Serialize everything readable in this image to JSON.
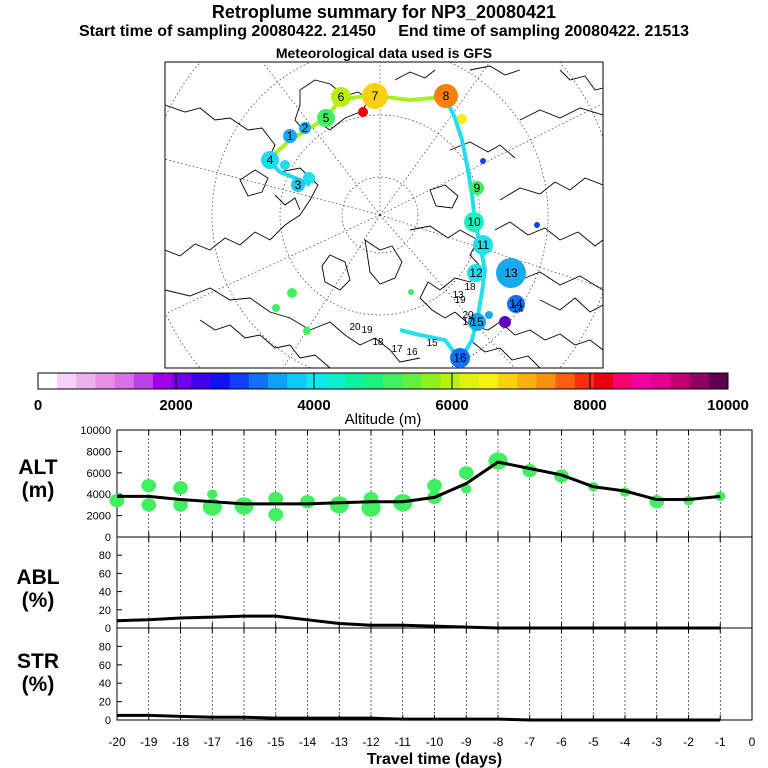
{
  "header": {
    "title": "Retroplume summary for NP3_20080421",
    "start_label": "Start time of sampling 20080422. 21450",
    "end_label": "End time of sampling 20080422. 21513",
    "met_label": "Meteorological data used is GFS"
  },
  "colorbar": {
    "label": "Altitude (m)",
    "ticks": [
      "0",
      "2000",
      "4000",
      "6000",
      "8000",
      "10000"
    ],
    "tick_values": [
      0,
      2000,
      4000,
      6000,
      8000,
      10000
    ],
    "colors": [
      "#ffffff",
      "#f7d0f7",
      "#efb0ef",
      "#e890e8",
      "#d870e8",
      "#c040e8",
      "#a000e8",
      "#7000e8",
      "#4000e8",
      "#1010f0",
      "#1040f8",
      "#1070f8",
      "#10a0f8",
      "#10c8f8",
      "#10e8f0",
      "#10f0d0",
      "#10f0a0",
      "#20f080",
      "#40f060",
      "#60f040",
      "#90f020",
      "#b8f010",
      "#e0f010",
      "#f8f010",
      "#f8d010",
      "#f8b010",
      "#f89010",
      "#f86010",
      "#f83010",
      "#e80010",
      "#f80070",
      "#f000a0",
      "#e00090",
      "#c00070",
      "#900060",
      "#600050"
    ]
  },
  "map": {
    "plume_points": [
      {
        "label": "1",
        "color": "#1aa8f0"
      },
      {
        "label": "2",
        "color": "#1aa8f0"
      },
      {
        "label": "3",
        "color": "#20c8f0"
      },
      {
        "label": "4",
        "color": "#20d8f0"
      },
      {
        "label": "5",
        "color": "#40f060"
      },
      {
        "label": "6",
        "color": "#b8f010"
      },
      {
        "label": "7",
        "color": "#f8d010"
      },
      {
        "label": "8",
        "color": "#f88010"
      },
      {
        "label": "9",
        "color": "#40f060"
      },
      {
        "label": "10",
        "color": "#20f0c0"
      },
      {
        "label": "11",
        "color": "#20e0f0"
      },
      {
        "label": "12",
        "color": "#20e0f0"
      },
      {
        "label": "13",
        "color": "#1aa8f0"
      },
      {
        "label": "14",
        "color": "#1070f8"
      },
      {
        "label": "15",
        "color": "#1aa8f0"
      },
      {
        "label": "16",
        "color": "#1070f8"
      }
    ],
    "text_labels": [
      "20",
      "19",
      "18",
      "17",
      "16",
      "15",
      "19",
      "20",
      "18",
      "17",
      "14",
      "13"
    ]
  },
  "panels": [
    {
      "name": "ALT",
      "label_line1": "ALT",
      "label_line2": "(m)",
      "y_ticks": [
        "0",
        "2000",
        "4000",
        "6000",
        "8000",
        "10000"
      ],
      "y_min": 0,
      "y_max": 10000
    },
    {
      "name": "ABL",
      "label_line1": "ABL",
      "label_line2": "(%)",
      "y_ticks": [
        "0",
        "20",
        "40",
        "60",
        "80"
      ],
      "y_min": 0,
      "y_max": 100
    },
    {
      "name": "STR",
      "label_line1": "STR",
      "label_line2": "(%)",
      "y_ticks": [
        "0",
        "20",
        "40",
        "60",
        "80"
      ],
      "y_min": 0,
      "y_max": 100
    }
  ],
  "chart_data": {
    "type": "line",
    "title": "Retroplume summary for NP3_20080421",
    "xlabel": "Travel time (days)",
    "x_ticks": [
      "-20",
      "-19",
      "-18",
      "-17",
      "-16",
      "-15",
      "-14",
      "-13",
      "-12",
      "-11",
      "-10",
      "-9",
      "-8",
      "-7",
      "-6",
      "-5",
      "-4",
      "-3",
      "-2",
      "-1",
      "0"
    ],
    "xlim": [
      -20,
      0
    ],
    "series": [
      {
        "name": "ALT (m)",
        "x": [
          -20,
          -19,
          -18,
          -17,
          -16,
          -15,
          -14,
          -13,
          -12,
          -11,
          -10,
          -9,
          -8,
          -7,
          -6,
          -5,
          -4,
          -3,
          -2,
          -1
        ],
        "values": [
          3800,
          3800,
          3500,
          3300,
          3100,
          3100,
          3100,
          3200,
          3300,
          3300,
          3700,
          5000,
          7000,
          6400,
          5800,
          4700,
          4300,
          3500,
          3500,
          3800
        ],
        "ylim": [
          0,
          10000
        ]
      },
      {
        "name": "ABL (%)",
        "x": [
          -20,
          -19,
          -18,
          -17,
          -16,
          -15,
          -14,
          -13,
          -12,
          -11,
          -10,
          -9,
          -8,
          -7,
          -6,
          -5,
          -4,
          -3,
          -2,
          -1
        ],
        "values": [
          8,
          9,
          11,
          12,
          13,
          13,
          9,
          5,
          3,
          3,
          2,
          1,
          0,
          0,
          0,
          0,
          0,
          0,
          0,
          0
        ],
        "ylim": [
          0,
          100
        ]
      },
      {
        "name": "STR (%)",
        "x": [
          -20,
          -19,
          -18,
          -17,
          -16,
          -15,
          -14,
          -13,
          -12,
          -11,
          -10,
          -9,
          -8,
          -7,
          -6,
          -5,
          -4,
          -3,
          -2,
          -1
        ],
        "values": [
          5,
          5,
          4,
          3,
          3,
          2,
          2,
          2,
          2,
          1,
          1,
          1,
          1,
          0,
          0,
          0,
          0,
          0,
          0,
          0
        ],
        "ylim": [
          0,
          100
        ]
      }
    ],
    "alt_clusters": [
      {
        "x": -20,
        "alt": 3400,
        "size": 2
      },
      {
        "x": -19,
        "alt": 4800,
        "size": 2
      },
      {
        "x": -19,
        "alt": 3000,
        "size": 2
      },
      {
        "x": -18,
        "alt": 4600,
        "size": 2
      },
      {
        "x": -18,
        "alt": 3000,
        "size": 2
      },
      {
        "x": -17,
        "alt": 2800,
        "size": 3
      },
      {
        "x": -17,
        "alt": 4000,
        "size": 1
      },
      {
        "x": -16,
        "alt": 2900,
        "size": 3
      },
      {
        "x": -15,
        "alt": 3600,
        "size": 2
      },
      {
        "x": -15,
        "alt": 2100,
        "size": 2
      },
      {
        "x": -14,
        "alt": 3300,
        "size": 2
      },
      {
        "x": -13,
        "alt": 3000,
        "size": 3
      },
      {
        "x": -12,
        "alt": 3600,
        "size": 2
      },
      {
        "x": -12,
        "alt": 2700,
        "size": 3
      },
      {
        "x": -11,
        "alt": 3200,
        "size": 3
      },
      {
        "x": -10,
        "alt": 4800,
        "size": 2
      },
      {
        "x": -10,
        "alt": 3700,
        "size": 2
      },
      {
        "x": -9,
        "alt": 6000,
        "size": 2
      },
      {
        "x": -9,
        "alt": 4500,
        "size": 1
      },
      {
        "x": -8,
        "alt": 7100,
        "size": 3
      },
      {
        "x": -7,
        "alt": 6200,
        "size": 2
      },
      {
        "x": -6,
        "alt": 5700,
        "size": 2
      },
      {
        "x": -5,
        "alt": 4700,
        "size": 1
      },
      {
        "x": -4,
        "alt": 4200,
        "size": 1
      },
      {
        "x": -3,
        "alt": 3300,
        "size": 2
      },
      {
        "x": -2,
        "alt": 3400,
        "size": 1
      },
      {
        "x": -1,
        "alt": 3800,
        "size": 1
      }
    ]
  }
}
